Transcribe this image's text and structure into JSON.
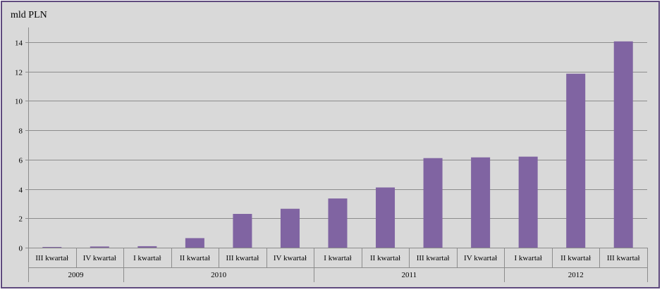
{
  "chart_data": {
    "type": "bar",
    "ylabel": "mld PLN",
    "ylim": [
      0,
      15
    ],
    "yticks": [
      0,
      2,
      4,
      6,
      8,
      10,
      12,
      14
    ],
    "grid": true,
    "legend": "none",
    "bar_color": "#8064a2",
    "categories": [
      "III kwartał",
      "IV kwartał",
      "I kwartał",
      "II kwartał",
      "III kwartał",
      "IV kwartał",
      "I kwartał",
      "II kwartał",
      "III kwartał",
      "IV kwartał",
      "I kwartał",
      "II kwartał",
      "III kwartał"
    ],
    "values": [
      0.02,
      0.08,
      0.1,
      0.65,
      2.3,
      2.65,
      3.35,
      4.1,
      6.1,
      6.15,
      6.2,
      11.85,
      14.05
    ],
    "groups": [
      {
        "label": "2009",
        "count": 2
      },
      {
        "label": "2010",
        "count": 4
      },
      {
        "label": "2011",
        "count": 4
      },
      {
        "label": "2012",
        "count": 3
      }
    ]
  }
}
